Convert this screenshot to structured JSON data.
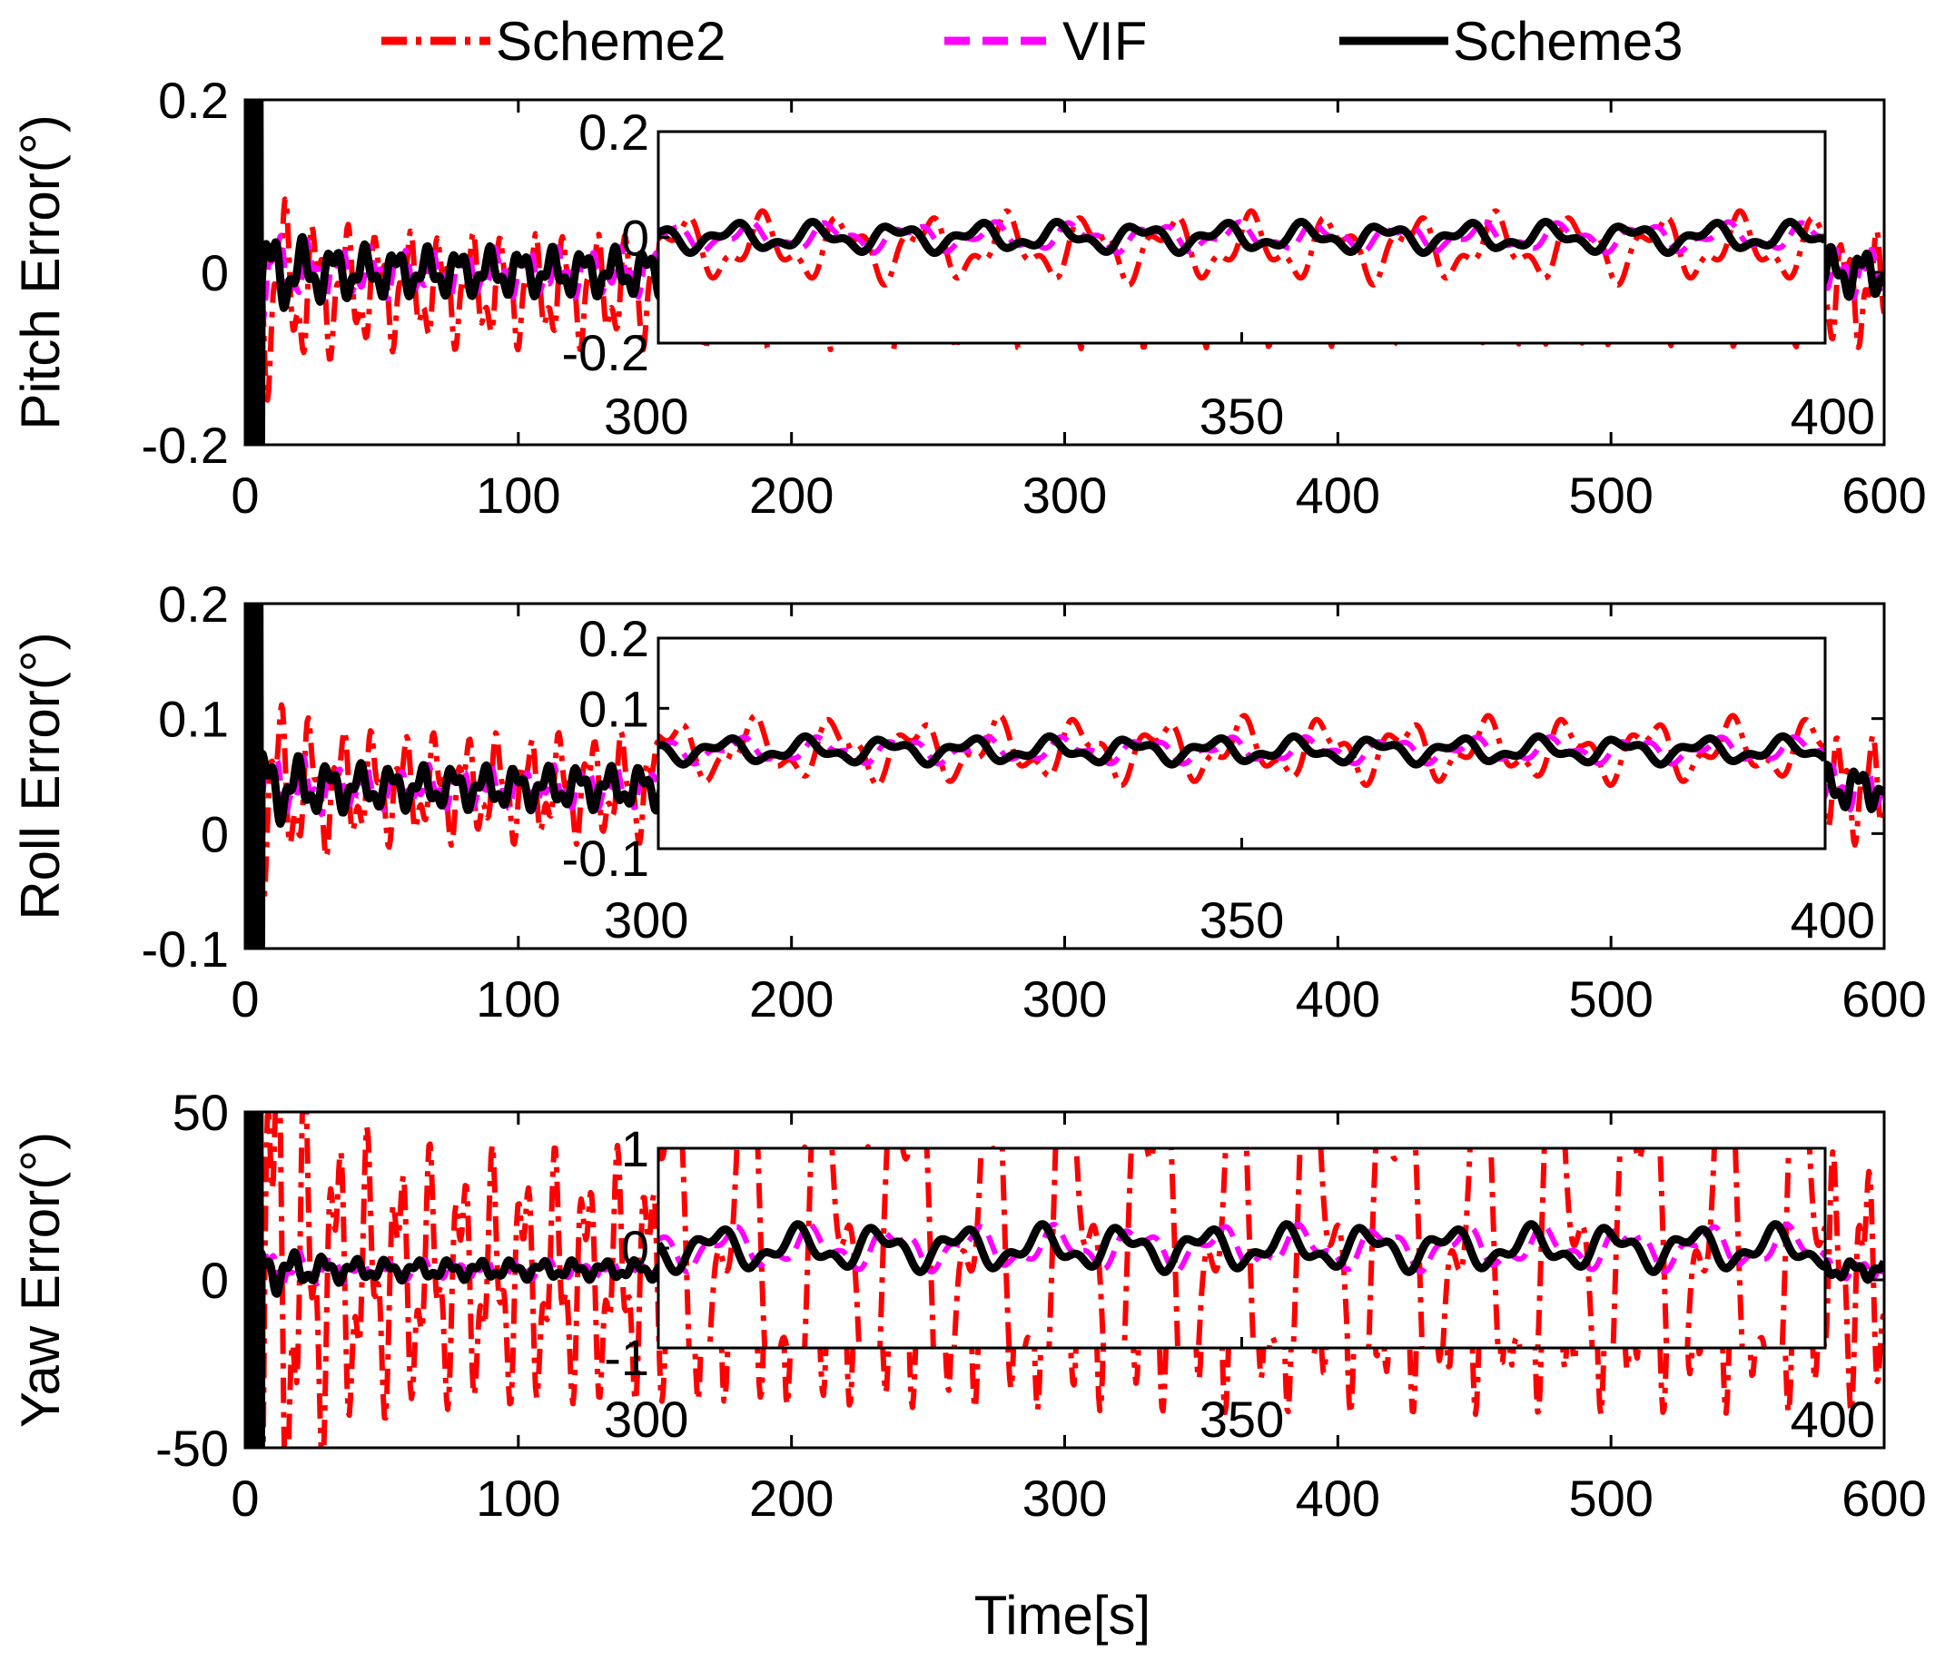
{
  "legend": {
    "placement": "top",
    "entries": [
      {
        "label": "Scheme2",
        "color": "#ff0000",
        "style": "dash-dot"
      },
      {
        "label": "VIF",
        "color": "#ff00ff",
        "style": "dashed"
      },
      {
        "label": "Scheme3",
        "color": "#000000",
        "style": "solid"
      }
    ]
  },
  "xlabel": "Time[s]",
  "chart_data": [
    {
      "type": "line",
      "ylabel": "Pitch Error(°)",
      "xlim": [
        0,
        600
      ],
      "ylim": [
        -0.2,
        0.2
      ],
      "xticks": [
        0,
        100,
        200,
        300,
        400,
        500,
        600
      ],
      "yticks": [
        -0.2,
        0,
        0.2
      ],
      "series": [
        {
          "name": "Scheme2",
          "color": "#ff0000",
          "amp": 0.07,
          "bias": -0.02
        },
        {
          "name": "VIF",
          "color": "#ff00ff",
          "amp": 0.03,
          "bias": 0.0
        },
        {
          "name": "Scheme3",
          "color": "#000000",
          "amp": 0.03,
          "bias": 0.0
        }
      ],
      "inset": {
        "xlim": [
          300,
          400
        ],
        "ylim": [
          -0.2,
          0.2
        ],
        "xticks": [
          300,
          350,
          400
        ],
        "yticks": [
          -0.2,
          0,
          0.2
        ],
        "ytick_labels": [
          "-0.2",
          "0",
          "0.2"
        ]
      }
    },
    {
      "type": "line",
      "ylabel": "Roll Error(°)",
      "xlim": [
        0,
        600
      ],
      "ylim": [
        -0.1,
        0.2
      ],
      "xticks": [
        0,
        100,
        200,
        300,
        400,
        500,
        600
      ],
      "yticks": [
        -0.1,
        0,
        0.1,
        0.2
      ],
      "series": [
        {
          "name": "Scheme2",
          "color": "#ff0000",
          "amp": 0.05,
          "bias": 0.04
        },
        {
          "name": "VIF",
          "color": "#ff00ff",
          "amp": 0.02,
          "bias": 0.04
        },
        {
          "name": "Scheme3",
          "color": "#000000",
          "amp": 0.02,
          "bias": 0.04
        }
      ],
      "inset": {
        "xlim": [
          300,
          400
        ],
        "ylim": [
          -0.1,
          0.2
        ],
        "xticks": [
          300,
          350,
          400
        ],
        "yticks": [
          -0.1,
          0.1,
          0.2
        ],
        "ytick_labels": [
          "-0.1",
          "0.1",
          "0.2"
        ]
      }
    },
    {
      "type": "line",
      "ylabel": "Yaw Error(°)",
      "xlim": [
        0,
        600
      ],
      "ylim": [
        -50,
        50
      ],
      "xticks": [
        0,
        100,
        200,
        300,
        400,
        500,
        600
      ],
      "yticks": [
        -50,
        0,
        50
      ],
      "series": [
        {
          "name": "Scheme2",
          "color": "#ff0000",
          "amp": 40,
          "bias": 0
        },
        {
          "name": "VIF",
          "color": "#ff00ff",
          "amp": 3,
          "bias": 3
        },
        {
          "name": "Scheme3",
          "color": "#000000",
          "amp": 3,
          "bias": 3
        }
      ],
      "inset": {
        "xlim": [
          300,
          400
        ],
        "ylim": [
          -1,
          1
        ],
        "xticks": [
          300,
          350,
          400
        ],
        "yticks": [
          -1,
          0,
          1
        ],
        "ytick_labels": [
          "-1",
          "0",
          "1"
        ]
      }
    }
  ]
}
